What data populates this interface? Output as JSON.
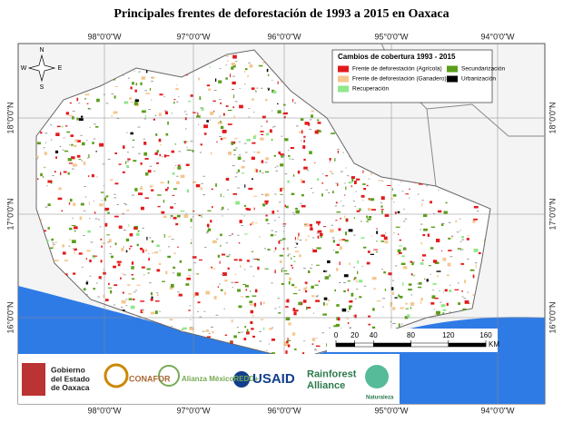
{
  "title": "Principales frentes de deforestación de 1993 a 2015 en Oaxaca",
  "longitudes": [
    "98°0'0\"W",
    "97°0'0\"W",
    "96°0'0\"W",
    "95°0'0\"W",
    "94°0'0\"W"
  ],
  "latitudes": [
    "18°0'0\"N",
    "17°0'0\"N",
    "16°0'0\"N"
  ],
  "compass": [
    "N",
    "S",
    "E",
    "W"
  ],
  "legend": {
    "title": "Cambios de cobertura 1993 - 2015",
    "items": [
      {
        "name": "Frente de deforestación (Agrícola)",
        "color": "#e31a1c"
      },
      {
        "name": "Secundarización",
        "color": "#5a9e1a"
      },
      {
        "name": "Frente de deforestación (Ganadero)",
        "color": "#f5c78e"
      },
      {
        "name": "Urbanización",
        "color": "#000000"
      },
      {
        "name": "Recuperación",
        "color": "#8fe88a"
      }
    ]
  },
  "scale": {
    "ticks": [
      0,
      20,
      40,
      80,
      120,
      160
    ],
    "unit": "KM"
  },
  "logos": [
    "Gobierno del Estado de Oaxaca",
    "CONAFOR",
    "Alianza MéxicoREDD+",
    "USAID",
    "Rainforest Alliance",
    "Naturaleza"
  ]
}
